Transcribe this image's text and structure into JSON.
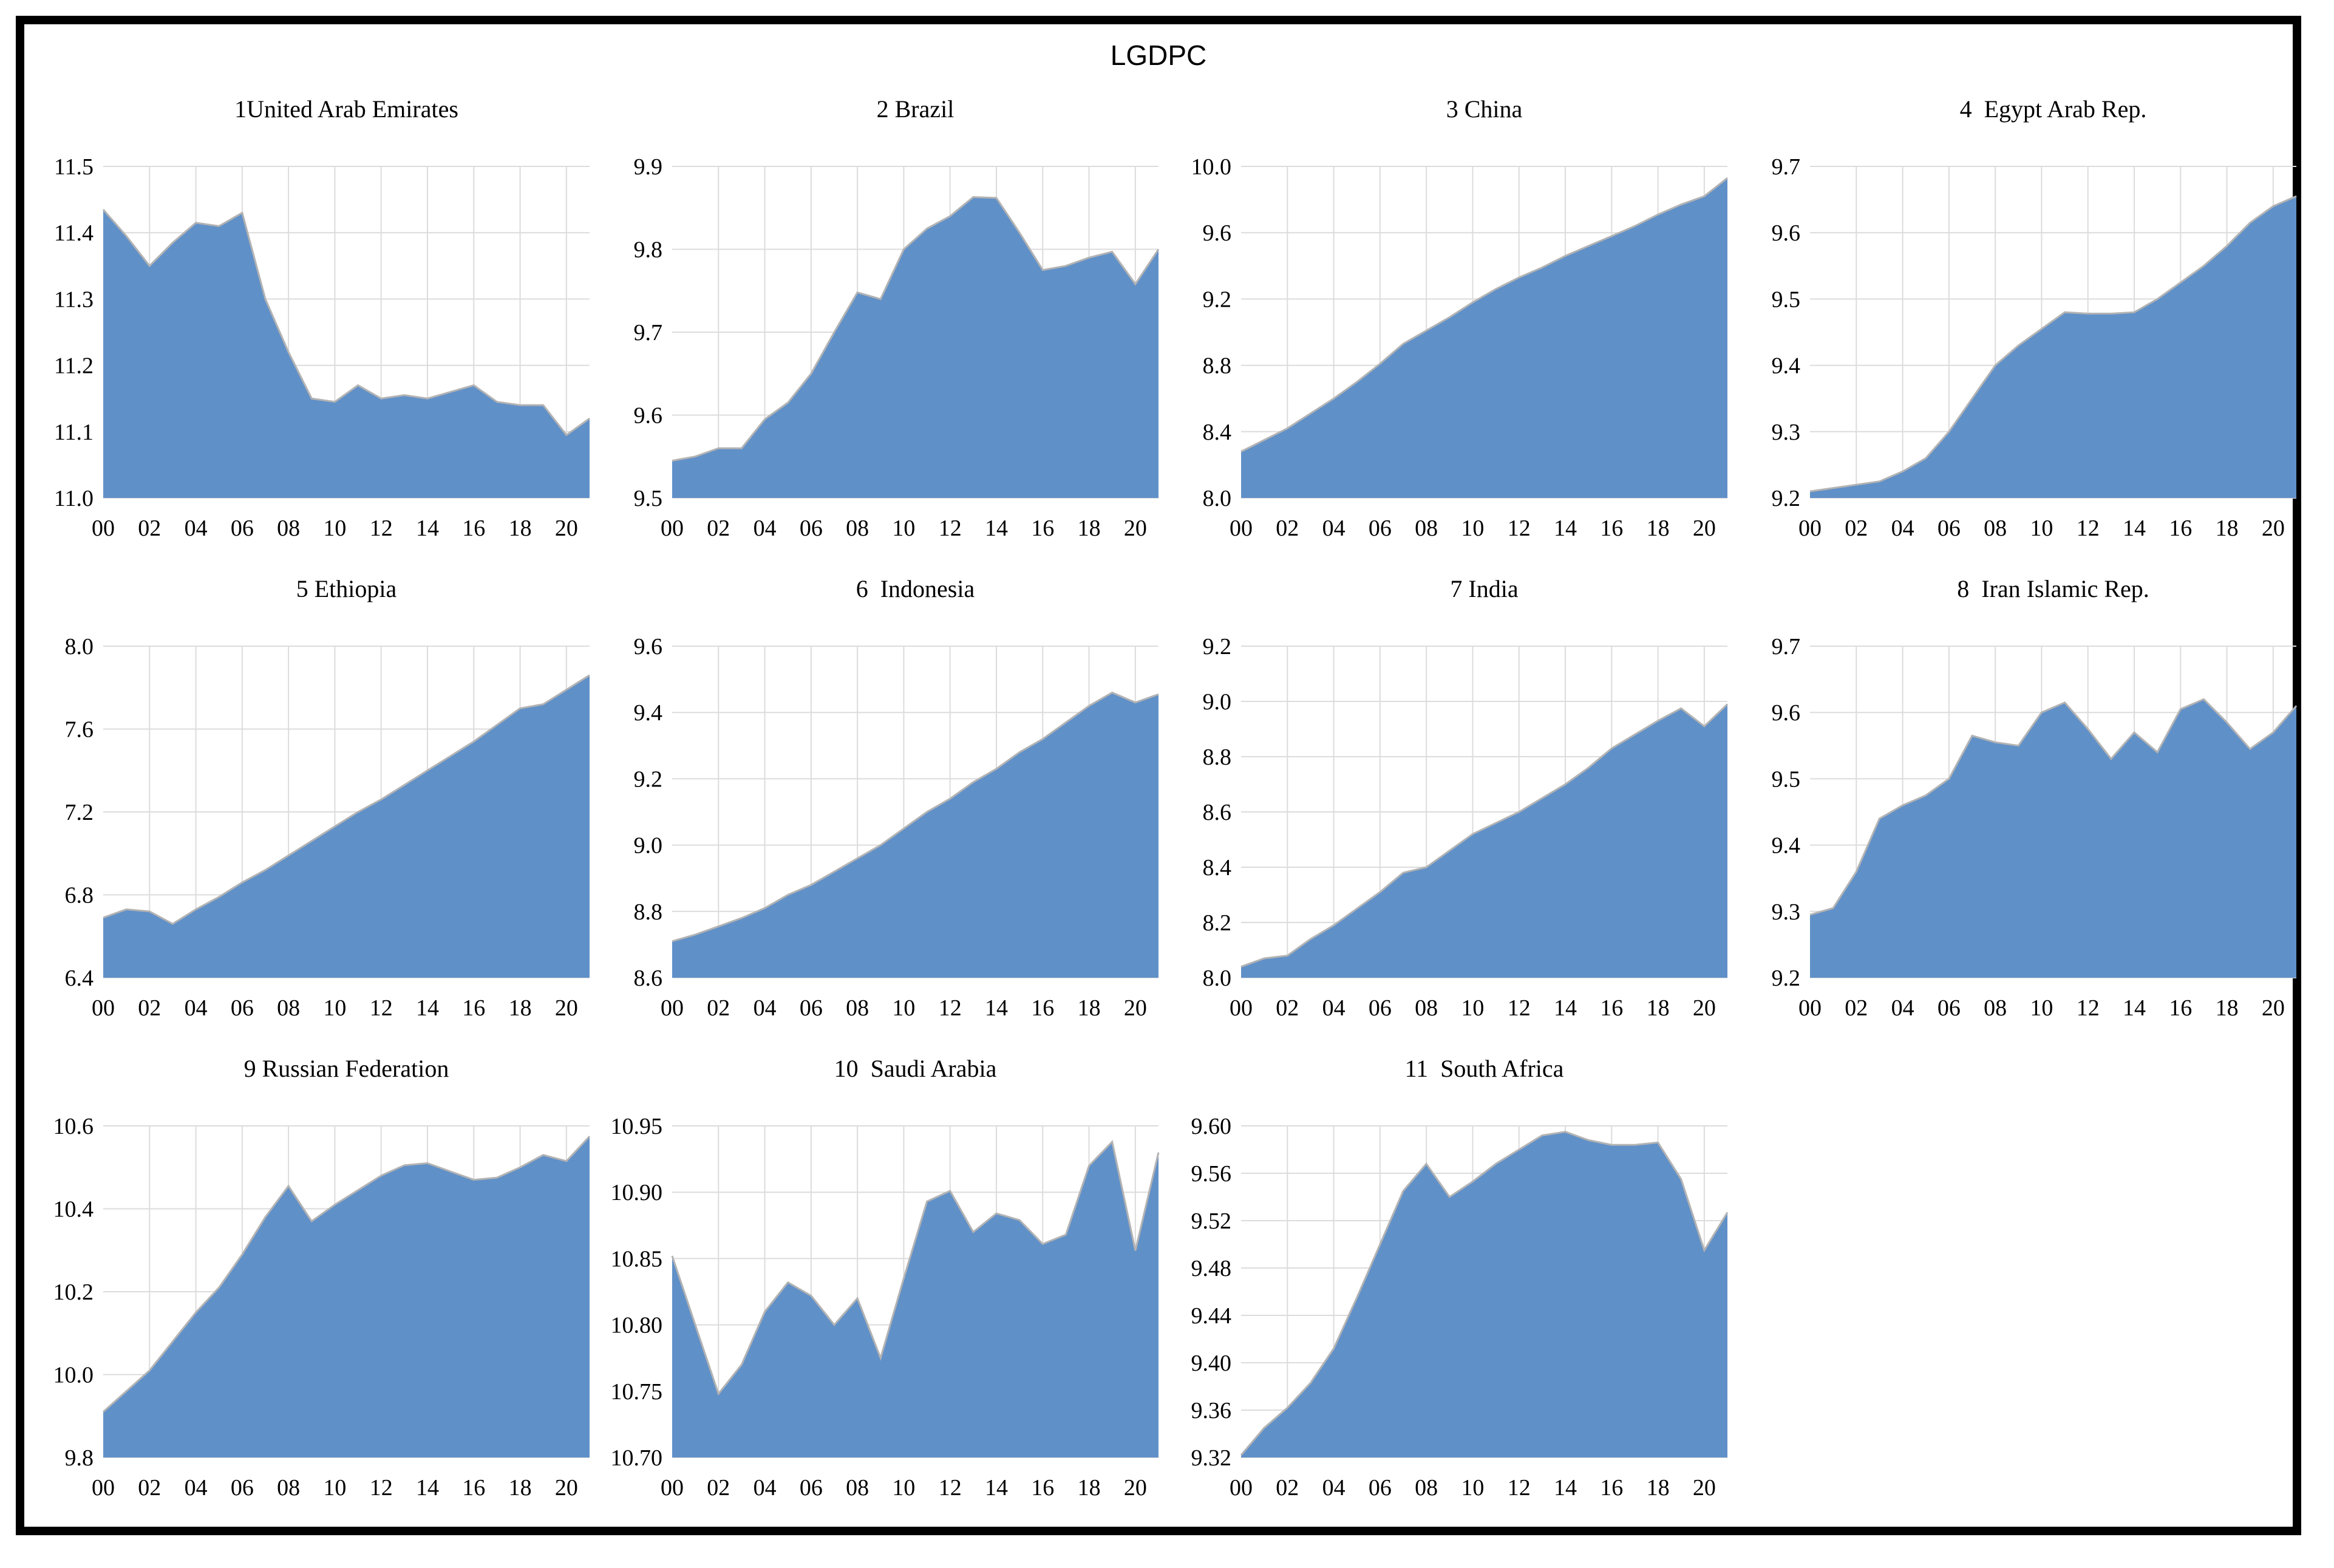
{
  "page_title": "LGDPC",
  "colors": {
    "area_fill": "#6090c8",
    "area_edge": "#b3b3b3",
    "gridline": "#dcdcdc",
    "text": "#000000",
    "frame": "#000000",
    "background": "#ffffff"
  },
  "x_axis": {
    "year_start": 2000,
    "year_end": 2021,
    "tick_labels": [
      "00",
      "02",
      "04",
      "06",
      "08",
      "10",
      "12",
      "14",
      "16",
      "18",
      "20"
    ],
    "gridline_years": [
      2002,
      2004,
      2006,
      2008,
      2010,
      2012,
      2014,
      2016,
      2018,
      2020
    ]
  },
  "chart_data": [
    {
      "type": "area",
      "name": "united-arab-emirates",
      "title": "1United Arab Emirates",
      "ymin": 11.0,
      "ymax": 11.5,
      "ytick_labels": [
        "11.0",
        "11.1",
        "11.2",
        "11.3",
        "11.4",
        "11.5"
      ],
      "x": [
        2000,
        2001,
        2002,
        2003,
        2004,
        2005,
        2006,
        2007,
        2008,
        2009,
        2010,
        2011,
        2012,
        2013,
        2014,
        2015,
        2016,
        2017,
        2018,
        2019,
        2020,
        2021
      ],
      "values": [
        11.435,
        11.395,
        11.35,
        11.385,
        11.415,
        11.41,
        11.43,
        11.3,
        11.22,
        11.15,
        11.145,
        11.17,
        11.15,
        11.155,
        11.15,
        11.16,
        11.17,
        11.145,
        11.14,
        11.14,
        11.095,
        11.12
      ]
    },
    {
      "type": "area",
      "name": "brazil",
      "title": "2 Brazil",
      "ymin": 9.5,
      "ymax": 9.9,
      "ytick_labels": [
        "9.5",
        "9.6",
        "9.7",
        "9.8",
        "9.9"
      ],
      "x": [
        2000,
        2001,
        2002,
        2003,
        2004,
        2005,
        2006,
        2007,
        2008,
        2009,
        2010,
        2011,
        2012,
        2013,
        2014,
        2015,
        2016,
        2017,
        2018,
        2019,
        2020,
        2021
      ],
      "values": [
        9.545,
        9.55,
        9.56,
        9.56,
        9.595,
        9.615,
        9.65,
        9.7,
        9.748,
        9.74,
        9.8,
        9.825,
        9.84,
        9.863,
        9.862,
        9.82,
        9.775,
        9.78,
        9.79,
        9.797,
        9.758,
        9.8
      ]
    },
    {
      "type": "area",
      "name": "china",
      "title": "3 China",
      "ymin": 8.0,
      "ymax": 10.0,
      "ytick_labels": [
        "8.0",
        "8.4",
        "8.8",
        "9.2",
        "9.6",
        "10.0"
      ],
      "x": [
        2000,
        2001,
        2002,
        2003,
        2004,
        2005,
        2006,
        2007,
        2008,
        2009,
        2010,
        2011,
        2012,
        2013,
        2014,
        2015,
        2016,
        2017,
        2018,
        2019,
        2020,
        2021
      ],
      "values": [
        8.28,
        8.35,
        8.42,
        8.51,
        8.6,
        8.7,
        8.81,
        8.93,
        9.01,
        9.09,
        9.18,
        9.26,
        9.33,
        9.39,
        9.46,
        9.52,
        9.58,
        9.64,
        9.71,
        9.77,
        9.82,
        9.93
      ]
    },
    {
      "type": "area",
      "name": "egypt-arab-rep",
      "title": "4  Egypt Arab Rep.",
      "ymin": 9.2,
      "ymax": 9.7,
      "ytick_labels": [
        "9.2",
        "9.3",
        "9.4",
        "9.5",
        "9.6",
        "9.7"
      ],
      "x": [
        2000,
        2001,
        2002,
        2003,
        2004,
        2005,
        2006,
        2007,
        2008,
        2009,
        2010,
        2011,
        2012,
        2013,
        2014,
        2015,
        2016,
        2017,
        2018,
        2019,
        2020,
        2021
      ],
      "values": [
        9.21,
        9.215,
        9.22,
        9.225,
        9.24,
        9.26,
        9.3,
        9.35,
        9.4,
        9.43,
        9.455,
        9.48,
        9.478,
        9.478,
        9.48,
        9.5,
        9.525,
        9.55,
        9.58,
        9.615,
        9.64,
        9.655
      ]
    },
    {
      "type": "area",
      "name": "ethiopia",
      "title": "5 Ethiopia",
      "ymin": 6.4,
      "ymax": 8.0,
      "ytick_labels": [
        "6.4",
        "6.8",
        "7.2",
        "7.6",
        "8.0"
      ],
      "x": [
        2000,
        2001,
        2002,
        2003,
        2004,
        2005,
        2006,
        2007,
        2008,
        2009,
        2010,
        2011,
        2012,
        2013,
        2014,
        2015,
        2016,
        2017,
        2018,
        2019,
        2020,
        2021
      ],
      "values": [
        6.69,
        6.73,
        6.72,
        6.66,
        6.73,
        6.79,
        6.86,
        6.92,
        6.99,
        7.06,
        7.13,
        7.2,
        7.26,
        7.33,
        7.4,
        7.47,
        7.54,
        7.62,
        7.7,
        7.72,
        7.79,
        7.86
      ]
    },
    {
      "type": "area",
      "name": "indonesia",
      "title": "6  Indonesia",
      "ymin": 8.6,
      "ymax": 9.6,
      "ytick_labels": [
        "8.6",
        "8.8",
        "9.0",
        "9.2",
        "9.4",
        "9.6"
      ],
      "x": [
        2000,
        2001,
        2002,
        2003,
        2004,
        2005,
        2006,
        2007,
        2008,
        2009,
        2010,
        2011,
        2012,
        2013,
        2014,
        2015,
        2016,
        2017,
        2018,
        2019,
        2020,
        2021
      ],
      "values": [
        8.71,
        8.73,
        8.755,
        8.78,
        8.81,
        8.85,
        8.88,
        8.92,
        8.96,
        9.0,
        9.05,
        9.1,
        9.14,
        9.19,
        9.23,
        9.28,
        9.32,
        9.37,
        9.42,
        9.46,
        9.43,
        9.455
      ]
    },
    {
      "type": "area",
      "name": "india",
      "title": "7 India",
      "ymin": 8.0,
      "ymax": 9.2,
      "ytick_labels": [
        "8.0",
        "8.2",
        "8.4",
        "8.6",
        "8.8",
        "9.0",
        "9.2"
      ],
      "x": [
        2000,
        2001,
        2002,
        2003,
        2004,
        2005,
        2006,
        2007,
        2008,
        2009,
        2010,
        2011,
        2012,
        2013,
        2014,
        2015,
        2016,
        2017,
        2018,
        2019,
        2020,
        2021
      ],
      "values": [
        8.04,
        8.07,
        8.08,
        8.14,
        8.19,
        8.25,
        8.31,
        8.38,
        8.4,
        8.46,
        8.52,
        8.56,
        8.6,
        8.65,
        8.7,
        8.76,
        8.83,
        8.88,
        8.93,
        8.975,
        8.91,
        8.99
      ]
    },
    {
      "type": "area",
      "name": "iran-islamic-rep",
      "title": "8  Iran Islamic Rep.",
      "ymin": 9.2,
      "ymax": 9.7,
      "ytick_labels": [
        "9.2",
        "9.3",
        "9.4",
        "9.5",
        "9.6",
        "9.7"
      ],
      "x": [
        2000,
        2001,
        2002,
        2003,
        2004,
        2005,
        2006,
        2007,
        2008,
        2009,
        2010,
        2011,
        2012,
        2013,
        2014,
        2015,
        2016,
        2017,
        2018,
        2019,
        2020,
        2021
      ],
      "values": [
        9.295,
        9.305,
        9.36,
        9.44,
        9.46,
        9.475,
        9.5,
        9.565,
        9.555,
        9.55,
        9.6,
        9.615,
        9.575,
        9.53,
        9.57,
        9.54,
        9.605,
        9.62,
        9.585,
        9.545,
        9.57,
        9.61
      ]
    },
    {
      "type": "area",
      "name": "russian-federation",
      "title": "9 Russian Federation",
      "ymin": 9.8,
      "ymax": 10.6,
      "ytick_labels": [
        "9.8",
        "10.0",
        "10.2",
        "10.4",
        "10.6"
      ],
      "x": [
        2000,
        2001,
        2002,
        2003,
        2004,
        2005,
        2006,
        2007,
        2008,
        2009,
        2010,
        2011,
        2012,
        2013,
        2014,
        2015,
        2016,
        2017,
        2018,
        2019,
        2020,
        2021
      ],
      "values": [
        9.91,
        9.96,
        10.01,
        10.08,
        10.15,
        10.21,
        10.29,
        10.38,
        10.455,
        10.37,
        10.41,
        10.445,
        10.48,
        10.505,
        10.51,
        10.49,
        10.47,
        10.475,
        10.5,
        10.53,
        10.515,
        10.575
      ]
    },
    {
      "type": "area",
      "name": "saudi-arabia",
      "title": "10  Saudi Arabia",
      "ymin": 10.7,
      "ymax": 10.95,
      "ytick_labels": [
        "10.70",
        "10.75",
        "10.80",
        "10.85",
        "10.90",
        "10.95"
      ],
      "x": [
        2000,
        2001,
        2002,
        2003,
        2004,
        2005,
        2006,
        2007,
        2008,
        2009,
        2010,
        2011,
        2012,
        2013,
        2014,
        2015,
        2016,
        2017,
        2018,
        2019,
        2020,
        2021
      ],
      "values": [
        10.852,
        10.8,
        10.748,
        10.77,
        10.81,
        10.832,
        10.822,
        10.8,
        10.82,
        10.775,
        10.835,
        10.893,
        10.901,
        10.87,
        10.884,
        10.879,
        10.861,
        10.868,
        10.92,
        10.938,
        10.856,
        10.93
      ]
    },
    {
      "type": "area",
      "name": "south-africa",
      "title": "11  South Africa",
      "ymin": 9.32,
      "ymax": 9.6,
      "ytick_labels": [
        "9.32",
        "9.36",
        "9.40",
        "9.44",
        "9.48",
        "9.52",
        "9.56",
        "9.60"
      ],
      "x": [
        2000,
        2001,
        2002,
        2003,
        2004,
        2005,
        2006,
        2007,
        2008,
        2009,
        2010,
        2011,
        2012,
        2013,
        2014,
        2015,
        2016,
        2017,
        2018,
        2019,
        2020,
        2021
      ],
      "values": [
        9.322,
        9.345,
        9.362,
        9.383,
        9.412,
        9.455,
        9.5,
        9.545,
        9.568,
        9.54,
        9.553,
        9.568,
        9.58,
        9.592,
        9.595,
        9.588,
        9.584,
        9.584,
        9.586,
        9.555,
        9.495,
        9.527
      ]
    }
  ]
}
